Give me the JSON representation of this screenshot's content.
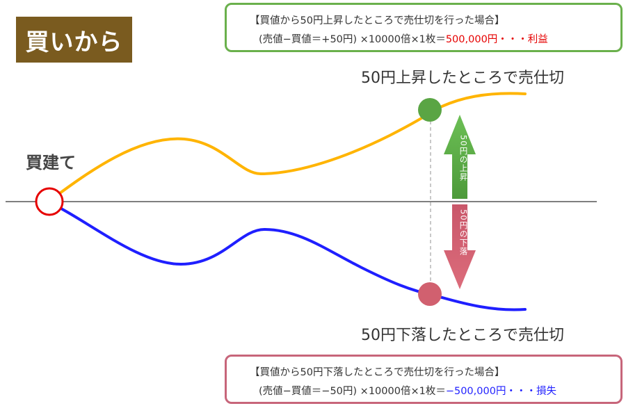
{
  "badge": {
    "title": "買いから"
  },
  "gain_box": {
    "heading": "【買値から50円上昇したところで売仕切を行った場合】",
    "formula": "(売値−買値＝+50円) ×10000倍×1枚＝",
    "result": "500,000円・・・利益",
    "result_color": "#e60000"
  },
  "loss_box": {
    "heading": "【買値から50円下落したところで売仕切を行った場合】",
    "formula": "(売値−買値＝−50円) ×10000倍×1枚＝",
    "result": "−500,000円・・・損失",
    "result_color": "#2323ff"
  },
  "labels": {
    "entry": "買建て",
    "exit_up": "50円上昇したところで売仕切",
    "exit_down": "50円下落したところで売仕切"
  },
  "arrows": {
    "up_text": "50円の上昇",
    "down_text": "50円の下落",
    "up_color": "#5aa544",
    "down_color": "#d1606f"
  },
  "colors": {
    "up_line": "#ffb400",
    "down_line": "#1f1fff",
    "entry_circle": "#e60000",
    "up_dot": "#5aa544",
    "down_dot": "#d1606f",
    "badge_bg": "#7a5b1f"
  }
}
